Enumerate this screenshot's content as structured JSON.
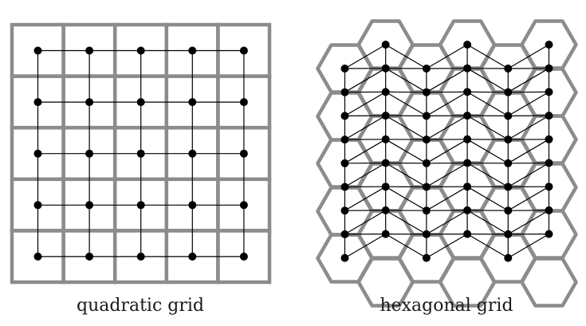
{
  "captions": {
    "left": "quadratic grid",
    "right": "hexagonal grid"
  },
  "quadratic": {
    "rows": 5,
    "cols": 5
  },
  "hexagonal": {
    "columns": 6,
    "nodes_per_column": [
      9,
      9,
      9,
      9,
      9,
      9
    ]
  },
  "colors": {
    "cell_stroke": "#8c8c8c",
    "edge": "#000000",
    "node": "#000000",
    "caption": "#1a1a1a"
  }
}
